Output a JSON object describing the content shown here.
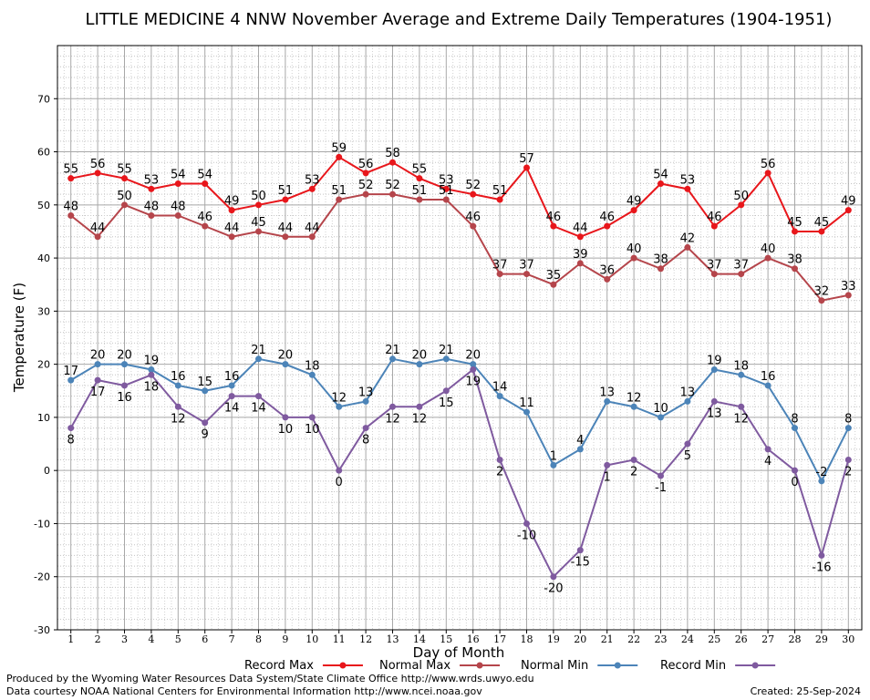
{
  "chart_data": {
    "type": "line",
    "title": "LITTLE MEDICINE 4 NNW November Average and Extreme Daily Temperatures (1904-1951)",
    "xlabel": "Day of Month",
    "ylabel": "Temperature (F)",
    "ylim": [
      -30,
      80
    ],
    "xlim": [
      0.5,
      30.5
    ],
    "yticks": [
      -30,
      -20,
      -10,
      0,
      10,
      20,
      30,
      40,
      50,
      60,
      70
    ],
    "x": [
      1,
      2,
      3,
      4,
      5,
      6,
      7,
      8,
      9,
      10,
      11,
      12,
      13,
      14,
      15,
      16,
      17,
      18,
      19,
      20,
      21,
      22,
      23,
      24,
      25,
      26,
      27,
      28,
      29,
      30
    ],
    "grid": true,
    "legend_position": "bottom",
    "series": [
      {
        "name": "Record Max",
        "color": "#e8161b",
        "label_pos": "above",
        "values": [
          55,
          56,
          55,
          53,
          54,
          54,
          49,
          50,
          51,
          53,
          59,
          56,
          58,
          55,
          53,
          52,
          51,
          57,
          46,
          44,
          46,
          49,
          54,
          53,
          46,
          50,
          56,
          45,
          45,
          49
        ]
      },
      {
        "name": "Normal Max",
        "color": "#b5454b",
        "label_pos": "above",
        "values": [
          48,
          44,
          50,
          48,
          48,
          46,
          44,
          45,
          44,
          44,
          51,
          52,
          52,
          51,
          51,
          46,
          37,
          37,
          35,
          39,
          36,
          40,
          38,
          42,
          37,
          37,
          40,
          38,
          32,
          33
        ]
      },
      {
        "name": "Normal Min",
        "color": "#4c84b8",
        "label_pos": "above",
        "values": [
          17,
          20,
          20,
          19,
          16,
          15,
          16,
          21,
          20,
          18,
          12,
          13,
          21,
          20,
          21,
          20,
          14,
          11,
          1,
          4,
          13,
          12,
          10,
          13,
          19,
          18,
          16,
          8,
          -2,
          8
        ]
      },
      {
        "name": "Record Min",
        "color": "#7f5a9f",
        "label_pos": "below",
        "values": [
          8,
          17,
          16,
          18,
          12,
          9,
          14,
          14,
          10,
          10,
          0,
          8,
          12,
          12,
          15,
          19,
          2,
          -10,
          -20,
          -15,
          1,
          2,
          -1,
          5,
          13,
          12,
          4,
          0,
          -16,
          2
        ]
      }
    ]
  },
  "footer": {
    "produced_by": "Produced by the Wyoming Water Resources Data System/State Climate Office http://www.wrds.uwyo.edu",
    "courtesy": "Data courtesy NOAA National Centers for Environmental Information http://www.ncei.noaa.gov",
    "created": "Created:  25-Sep-2024"
  }
}
